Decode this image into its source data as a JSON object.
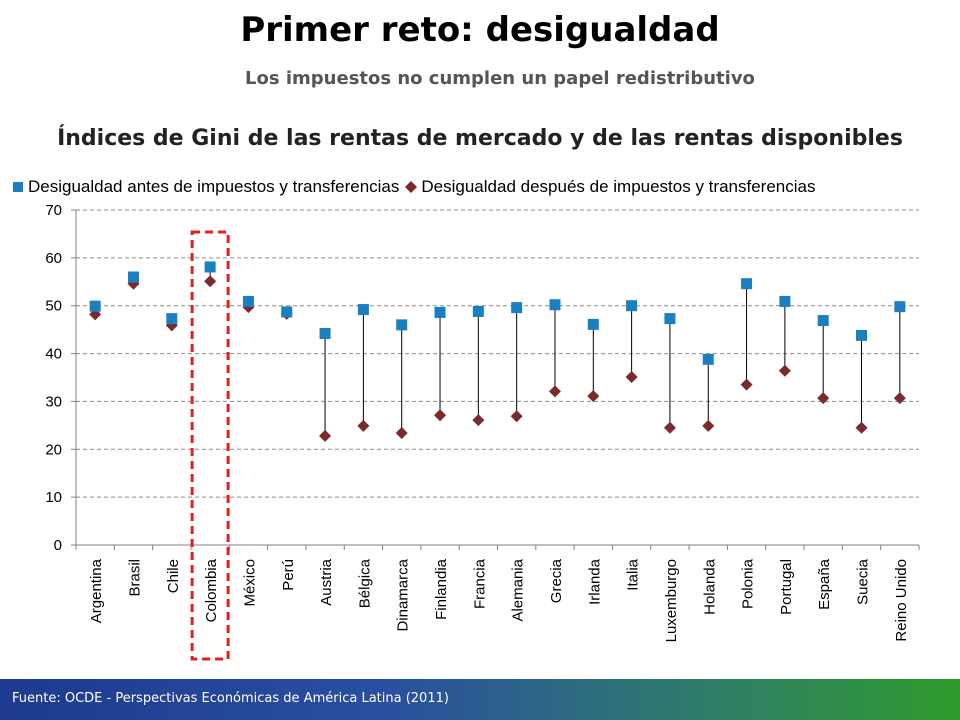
{
  "slide": {
    "title": "Primer reto: desigualdad",
    "subtitle": "Los impuestos no cumplen un papel redistributivo",
    "source": "Fuente: OCDE - Perspectivas Económicas  de América Latina (2011)"
  },
  "colors": {
    "before": "#1a7fc1",
    "after": "#7a2a2a",
    "highlight": "#e02020",
    "footer_start": "#1d3a8f",
    "footer_end": "#2f9a2c"
  },
  "chart_data": {
    "type": "scatter",
    "title": "Índices de Gini de las rentas de mercado y de las rentas disponibles",
    "xlabel": "",
    "ylabel": "",
    "ylim": [
      0,
      70
    ],
    "yticks": [
      0,
      10,
      20,
      30,
      40,
      50,
      60,
      70
    ],
    "grid": true,
    "legend_position": "top",
    "categories": [
      "Argentina",
      "Brasil",
      "Chile",
      "Colombia",
      "México",
      "Perú",
      "Austria",
      "Bélgica",
      "Dinamarca",
      "Finlandia",
      "Francia",
      "Alemania",
      "Grecia",
      "Irlanda",
      "Italia",
      "Luxemburgo",
      "Holanda",
      "Polonia",
      "Portugal",
      "España",
      "Suecia",
      "Reino Unido"
    ],
    "series": [
      {
        "name": "Desigualdad antes de impuestos y transferencias",
        "marker": "square",
        "values": [
          49.9,
          56.0,
          47.3,
          58.1,
          50.9,
          48.7,
          44.2,
          49.2,
          46.0,
          48.6,
          48.8,
          49.6,
          50.2,
          46.1,
          50.0,
          47.3,
          38.8,
          54.6,
          50.9,
          46.9,
          43.8,
          49.8
        ]
      },
      {
        "name": "Desigualdad después  de impuestos y transferencias",
        "marker": "diamond",
        "values": [
          48.2,
          54.6,
          45.9,
          55.1,
          49.7,
          48.3,
          22.8,
          24.9,
          23.4,
          27.1,
          26.1,
          26.9,
          32.1,
          31.1,
          35.1,
          24.5,
          24.9,
          33.5,
          36.4,
          30.7,
          24.5,
          30.7
        ]
      }
    ],
    "highlighted_category": "Colombia"
  }
}
